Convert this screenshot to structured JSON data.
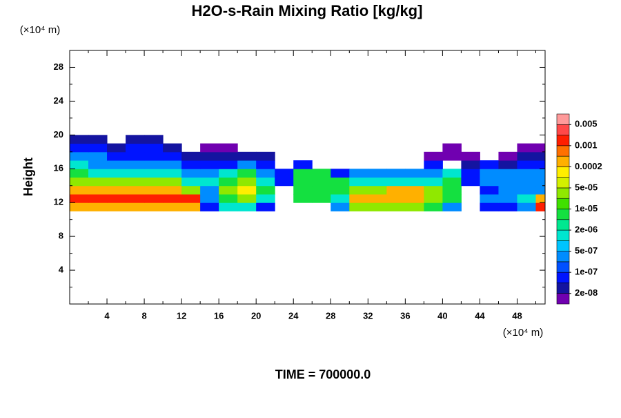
{
  "chart_data": {
    "type": "contour",
    "title": "H2O-s-Rain Mixing Ratio [kg/kg]",
    "ylabel": "Height",
    "yunit": "(×10⁴ m)",
    "xunit": "(×10⁴ m)",
    "footer": "TIME = 700000.0",
    "xlim": [
      0,
      51
    ],
    "ylim": [
      0,
      30
    ],
    "xticks": [
      4,
      8,
      12,
      16,
      20,
      24,
      28,
      32,
      36,
      40,
      44,
      48
    ],
    "yticks": [
      4,
      8,
      12,
      16,
      20,
      24,
      28
    ],
    "xminorticks": [
      2,
      6,
      10,
      14,
      18,
      22,
      26,
      30,
      34,
      38,
      42,
      46,
      50
    ],
    "yminorticks": [
      2,
      6,
      10,
      14,
      18,
      22,
      26,
      30
    ],
    "x": [
      1,
      3,
      5,
      7,
      9,
      11,
      13,
      15,
      17,
      19,
      21,
      23,
      25,
      27,
      29,
      31,
      33,
      35,
      37,
      39,
      41,
      43,
      45,
      47,
      49,
      51
    ],
    "y": [
      11.5,
      12.5,
      13.5,
      14.5,
      15.5,
      16.5,
      17.5,
      18.5,
      19.5
    ],
    "values": [
      [
        0.0003,
        0.0003,
        0.0003,
        0.0003,
        0.0003,
        0.0003,
        0.0003,
        7e-08,
        1.5e-06,
        1.5e-06,
        7e-08,
        null,
        null,
        null,
        3e-07,
        3e-05,
        3e-05,
        3e-05,
        3e-05,
        7e-06,
        3e-07,
        null,
        7e-08,
        7e-08,
        3e-07,
        0.0015
      ],
      [
        0.0015,
        0.0015,
        0.0015,
        0.0015,
        0.0015,
        0.0015,
        0.0015,
        3e-07,
        7e-06,
        3e-05,
        1.5e-06,
        null,
        7e-06,
        7e-06,
        1.5e-06,
        0.0003,
        0.0003,
        0.0003,
        0.0003,
        3e-05,
        7e-06,
        null,
        3e-07,
        3e-07,
        1.5e-06,
        0.0003
      ],
      [
        0.0003,
        0.0003,
        0.0003,
        0.0003,
        0.0003,
        0.0003,
        3e-05,
        3e-07,
        3e-05,
        0.00015,
        7e-06,
        null,
        7e-06,
        7e-06,
        7e-06,
        3e-05,
        3e-05,
        0.0003,
        0.0003,
        3e-05,
        7e-06,
        null,
        7e-08,
        3e-07,
        3e-07,
        3e-07
      ],
      [
        3e-05,
        3e-05,
        3e-05,
        3e-05,
        3e-05,
        3e-05,
        1.5e-06,
        1.5e-06,
        7e-06,
        3e-05,
        1.5e-06,
        7e-08,
        7e-06,
        7e-06,
        7e-06,
        1.5e-06,
        1.5e-06,
        1.5e-06,
        1.5e-06,
        1.5e-06,
        7e-06,
        7e-08,
        3e-07,
        3e-07,
        3e-07,
        3e-07
      ],
      [
        7e-06,
        1.5e-06,
        1.5e-06,
        1.5e-06,
        1.5e-06,
        1.5e-06,
        3e-07,
        3e-07,
        1.5e-06,
        7e-06,
        3e-07,
        7e-08,
        7e-06,
        7e-06,
        7e-08,
        3e-07,
        3e-07,
        3e-07,
        3e-07,
        3e-07,
        1.5e-06,
        7e-08,
        3e-07,
        3e-07,
        3e-07,
        3e-07
      ],
      [
        1.5e-06,
        3e-07,
        3e-07,
        3e-07,
        3e-07,
        3e-07,
        7e-08,
        7e-08,
        7e-08,
        3e-07,
        7e-08,
        null,
        7e-08,
        null,
        null,
        null,
        null,
        null,
        null,
        7e-08,
        null,
        3e-08,
        7e-08,
        3e-08,
        7e-08,
        7e-08
      ],
      [
        3e-07,
        3e-07,
        7e-08,
        7e-08,
        7e-08,
        7e-08,
        3e-08,
        3e-08,
        3e-08,
        3e-08,
        3e-08,
        null,
        null,
        null,
        null,
        null,
        null,
        null,
        null,
        1e-08,
        1e-08,
        1e-08,
        null,
        1e-08,
        3e-08,
        3e-08
      ],
      [
        7e-08,
        7e-08,
        3e-08,
        7e-08,
        7e-08,
        3e-08,
        null,
        1e-08,
        1e-08,
        null,
        null,
        null,
        null,
        null,
        null,
        null,
        null,
        null,
        null,
        null,
        1e-08,
        null,
        null,
        null,
        1e-08,
        1e-08
      ],
      [
        3e-08,
        3e-08,
        null,
        3e-08,
        3e-08,
        null,
        null,
        null,
        null,
        null,
        null,
        null,
        null,
        null,
        null,
        null,
        null,
        null,
        null,
        null,
        null,
        null,
        null,
        null,
        null,
        null
      ]
    ],
    "levels": [
      2e-08,
      5e-08,
      1e-07,
      2e-07,
      5e-07,
      1e-06,
      2e-06,
      5e-06,
      1e-05,
      2e-05,
      5e-05,
      0.0001,
      0.0002,
      0.0005,
      0.001,
      0.002,
      0.005
    ],
    "level_ticks": [
      {
        "value": 2e-08,
        "label": "2e-08"
      },
      {
        "value": 1e-07,
        "label": "1e-07"
      },
      {
        "value": 5e-07,
        "label": "5e-07"
      },
      {
        "value": 2e-06,
        "label": "2e-06"
      },
      {
        "value": 1e-05,
        "label": "1e-05"
      },
      {
        "value": 5e-05,
        "label": "5e-05"
      },
      {
        "value": 0.0002,
        "label": "0.0002"
      },
      {
        "value": 0.001,
        "label": "0.001"
      },
      {
        "value": 0.005,
        "label": "0.005"
      }
    ],
    "colors": [
      "#7000b0",
      "#1414a0",
      "#0014ff",
      "#0050ff",
      "#008cff",
      "#00c4ff",
      "#00e6d0",
      "#00e890",
      "#14e040",
      "#40e000",
      "#90e800",
      "#d4f000",
      "#ffee00",
      "#ffb000",
      "#ff7000",
      "#ff1e00",
      "#ff4848",
      "#ff9a9a"
    ]
  }
}
